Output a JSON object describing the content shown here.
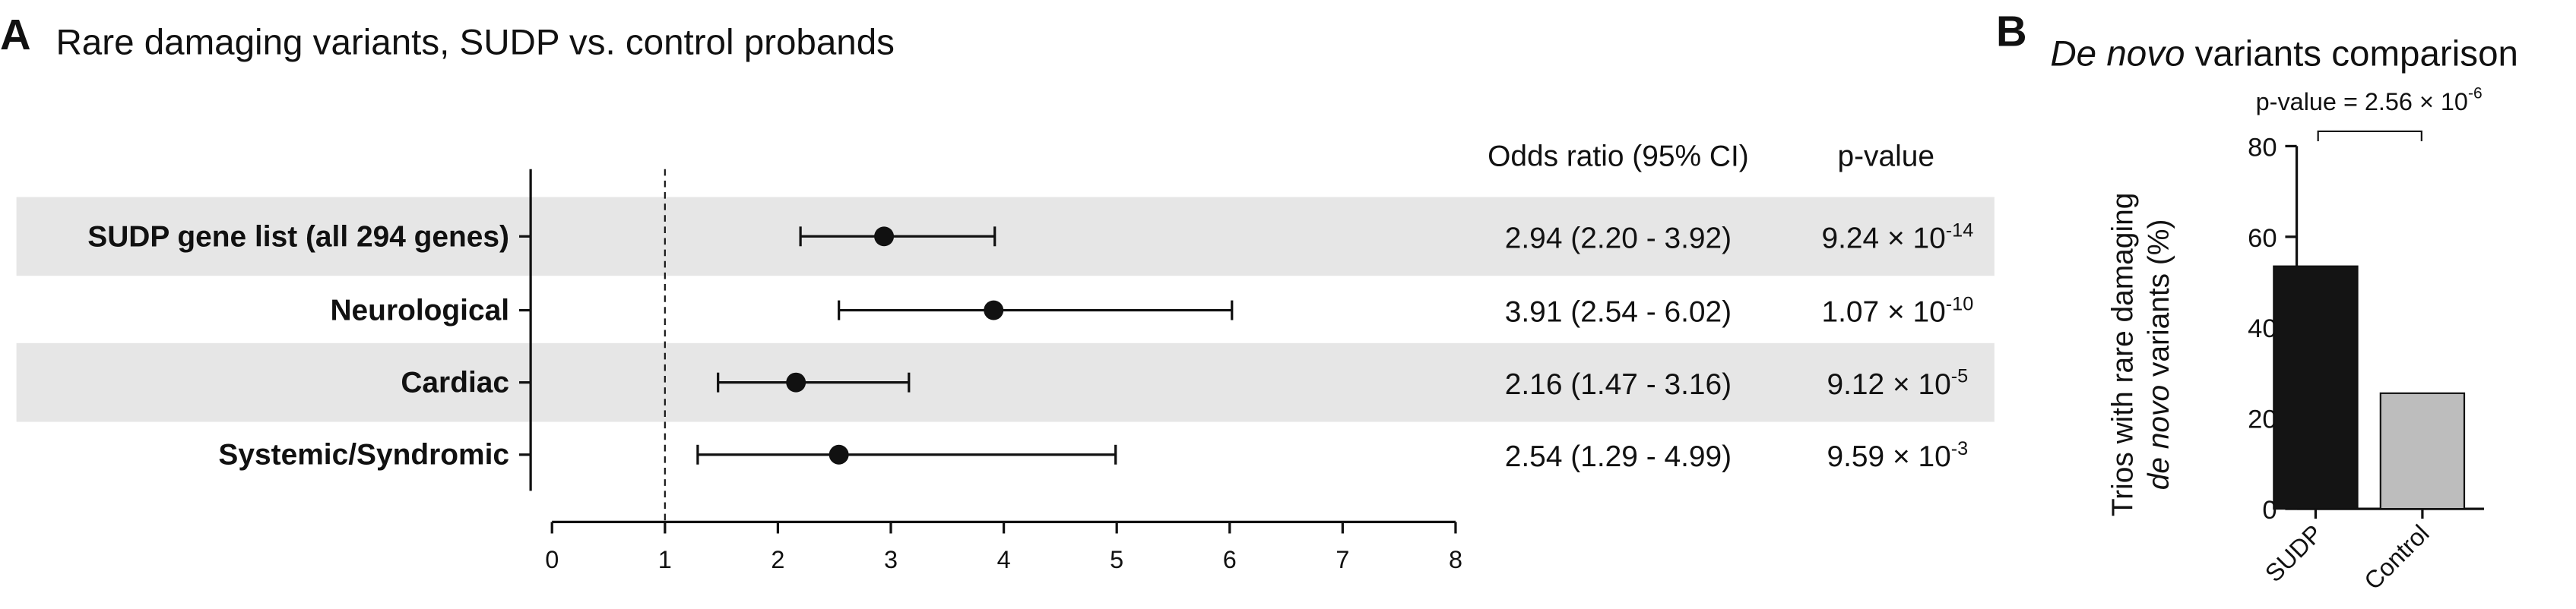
{
  "chart_data": [
    {
      "type": "forest",
      "panel": "A",
      "title": "Rare damaging variants, SUDP vs. control probands",
      "column_headers": [
        "Odds ratio (95% CI)",
        "p-value"
      ],
      "categories": [
        "SUDP gene list (all 294 genes)",
        "Neurological",
        "Cardiac",
        "Systemic/Syndromic"
      ],
      "values": [
        2.94,
        3.91,
        2.16,
        2.54
      ],
      "lower": [
        2.2,
        2.54,
        1.47,
        1.29
      ],
      "upper": [
        3.92,
        6.02,
        3.16,
        4.99
      ],
      "value_labels": [
        "2.94 (2.20 - 3.92)",
        "3.91 (2.54 - 6.02)",
        "2.16 (1.47 - 3.16)",
        "2.54 (1.29 - 4.99)"
      ],
      "p_values": [
        {
          "base": "9.24 × 10",
          "exp": "-14"
        },
        {
          "base": "1.07 × 10",
          "exp": "-10"
        },
        {
          "base": "9.12 × 10",
          "exp": "-5"
        },
        {
          "base": "9.59 × 10",
          "exp": "-3"
        }
      ],
      "color": "#111111",
      "band_color": "#e6e6e6",
      "reference_line": 1,
      "xlim": [
        0,
        8
      ],
      "xticks": [
        0,
        1,
        2,
        3,
        4,
        5,
        6,
        7,
        8
      ]
    },
    {
      "type": "bar",
      "panel": "B",
      "title": {
        "italic": "De novo",
        "rest": " variants comparison"
      },
      "y_label": {
        "line1": "Trios with rare damaging",
        "italic": "de novo",
        "rest": " variants (%)"
      },
      "annotation": {
        "base": "p-value = 2.56 × 10",
        "exp": "-6"
      },
      "categories": [
        "SUDP",
        "Control"
      ],
      "values": [
        53.5,
        25.5
      ],
      "colors": [
        "#141414",
        "#bdbdbd"
      ],
      "ylim": [
        0,
        80
      ],
      "yticks": [
        0,
        20,
        40,
        60,
        80
      ]
    }
  ]
}
